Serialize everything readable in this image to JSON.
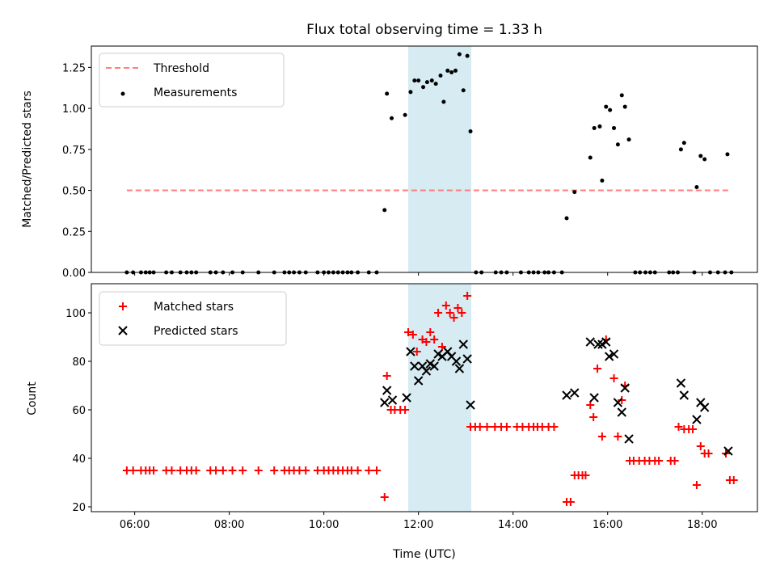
{
  "figure": {
    "title": "Flux total observing time = 1.33 h"
  },
  "chart_data": [
    {
      "type": "scatter",
      "panel": "top",
      "title": "Flux total observing time = 1.33 h",
      "xlabel": "",
      "ylabel": "Matched/Predicted stars",
      "xlim": [
        "05:05",
        "19:10"
      ],
      "ylim": [
        0,
        1.38
      ],
      "yticks": [
        "0.00",
        "0.25",
        "0.50",
        "0.75",
        "1.00",
        "1.25"
      ],
      "legend": {
        "placement": "top-left",
        "entries": [
          "Threshold",
          "Measurements"
        ]
      },
      "highlight_span": {
        "from": "11:47",
        "to": "13:07",
        "color": "#add8e6"
      },
      "series": [
        {
          "name": "Threshold",
          "style": "dashed-line",
          "color": "#ff7f7f",
          "points": [
            [
              "05:50",
              0.5
            ],
            [
              "18:35",
              0.5
            ]
          ]
        },
        {
          "name": "Measurements",
          "style": "dot",
          "color": "#000000",
          "points": [
            [
              "05:50",
              0
            ],
            [
              "05:58",
              0
            ],
            [
              "06:08",
              0
            ],
            [
              "06:14",
              0
            ],
            [
              "06:19",
              0
            ],
            [
              "06:24",
              0
            ],
            [
              "06:40",
              0
            ],
            [
              "06:47",
              0
            ],
            [
              "06:58",
              0
            ],
            [
              "07:06",
              0
            ],
            [
              "07:12",
              0
            ],
            [
              "07:18",
              0
            ],
            [
              "07:36",
              0
            ],
            [
              "07:43",
              0
            ],
            [
              "07:52",
              0
            ],
            [
              "08:04",
              0
            ],
            [
              "08:17",
              0
            ],
            [
              "08:37",
              0
            ],
            [
              "08:57",
              0
            ],
            [
              "09:10",
              0
            ],
            [
              "09:16",
              0
            ],
            [
              "09:22",
              0
            ],
            [
              "09:29",
              0
            ],
            [
              "09:37",
              0
            ],
            [
              "09:52",
              0
            ],
            [
              "10:00",
              0
            ],
            [
              "10:06",
              0
            ],
            [
              "10:12",
              0
            ],
            [
              "10:18",
              0
            ],
            [
              "10:24",
              0
            ],
            [
              "10:30",
              0
            ],
            [
              "10:35",
              0
            ],
            [
              "10:43",
              0
            ],
            [
              "10:57",
              0
            ],
            [
              "11:07",
              0
            ],
            [
              "11:17",
              0.38
            ],
            [
              "11:20",
              1.09
            ],
            [
              "11:26",
              0.94
            ],
            [
              "11:43",
              0.96
            ],
            [
              "11:50",
              1.1
            ],
            [
              "11:55",
              1.17
            ],
            [
              "12:00",
              1.17
            ],
            [
              "12:06",
              1.13
            ],
            [
              "12:11",
              1.16
            ],
            [
              "12:17",
              1.17
            ],
            [
              "12:22",
              1.15
            ],
            [
              "12:28",
              1.2
            ],
            [
              "12:32",
              1.04
            ],
            [
              "12:37",
              1.23
            ],
            [
              "12:42",
              1.22
            ],
            [
              "12:47",
              1.23
            ],
            [
              "12:52",
              1.33
            ],
            [
              "12:57",
              1.11
            ],
            [
              "13:02",
              1.32
            ],
            [
              "13:06",
              0.86
            ],
            [
              "13:13",
              0
            ],
            [
              "13:20",
              0
            ],
            [
              "13:38",
              0
            ],
            [
              "13:45",
              0
            ],
            [
              "13:52",
              0
            ],
            [
              "14:10",
              0
            ],
            [
              "14:20",
              0
            ],
            [
              "14:26",
              0
            ],
            [
              "14:32",
              0
            ],
            [
              "14:40",
              0
            ],
            [
              "14:45",
              0
            ],
            [
              "14:52",
              0
            ],
            [
              "15:02",
              0
            ],
            [
              "15:08",
              0.33
            ],
            [
              "15:18",
              0.49
            ],
            [
              "15:38",
              0.7
            ],
            [
              "15:43",
              0.88
            ],
            [
              "15:50",
              0.89
            ],
            [
              "15:53",
              0.56
            ],
            [
              "15:58",
              1.01
            ],
            [
              "16:03",
              0.99
            ],
            [
              "16:08",
              0.88
            ],
            [
              "16:13",
              0.78
            ],
            [
              "16:18",
              1.08
            ],
            [
              "16:22",
              1.01
            ],
            [
              "16:27",
              0.81
            ],
            [
              "16:35",
              0
            ],
            [
              "16:41",
              0
            ],
            [
              "16:48",
              0
            ],
            [
              "16:54",
              0
            ],
            [
              "17:00",
              0
            ],
            [
              "17:18",
              0
            ],
            [
              "17:23",
              0
            ],
            [
              "17:29",
              0
            ],
            [
              "17:33",
              0.75
            ],
            [
              "17:37",
              0.79
            ],
            [
              "17:50",
              0
            ],
            [
              "17:53",
              0.52
            ],
            [
              "17:58",
              0.71
            ],
            [
              "18:03",
              0.69
            ],
            [
              "18:10",
              0
            ],
            [
              "18:20",
              0
            ],
            [
              "18:29",
              0
            ],
            [
              "18:32",
              0.72
            ],
            [
              "18:37",
              0
            ]
          ]
        }
      ]
    },
    {
      "type": "scatter",
      "panel": "bottom",
      "xlabel": "Time (UTC)",
      "ylabel": "Count",
      "xlim": [
        "05:05",
        "19:10"
      ],
      "ylim": [
        18,
        112
      ],
      "xticks": [
        "06:00",
        "08:00",
        "10:00",
        "12:00",
        "14:00",
        "16:00",
        "18:00"
      ],
      "yticks": [
        "20",
        "40",
        "60",
        "80",
        "100"
      ],
      "legend": {
        "placement": "top-left",
        "entries": [
          "Matched stars",
          "Predicted stars"
        ]
      },
      "highlight_span": {
        "from": "11:47",
        "to": "13:07",
        "color": "#add8e6"
      },
      "series": [
        {
          "name": "Matched stars",
          "style": "plus",
          "color": "#ff0000",
          "points": [
            [
              "05:50",
              35
            ],
            [
              "05:58",
              35
            ],
            [
              "06:08",
              35
            ],
            [
              "06:14",
              35
            ],
            [
              "06:19",
              35
            ],
            [
              "06:24",
              35
            ],
            [
              "06:40",
              35
            ],
            [
              "06:47",
              35
            ],
            [
              "06:58",
              35
            ],
            [
              "07:06",
              35
            ],
            [
              "07:12",
              35
            ],
            [
              "07:18",
              35
            ],
            [
              "07:36",
              35
            ],
            [
              "07:43",
              35
            ],
            [
              "07:52",
              35
            ],
            [
              "08:04",
              35
            ],
            [
              "08:17",
              35
            ],
            [
              "08:37",
              35
            ],
            [
              "08:57",
              35
            ],
            [
              "09:10",
              35
            ],
            [
              "09:16",
              35
            ],
            [
              "09:22",
              35
            ],
            [
              "09:29",
              35
            ],
            [
              "09:37",
              35
            ],
            [
              "09:52",
              35
            ],
            [
              "10:00",
              35
            ],
            [
              "10:06",
              35
            ],
            [
              "10:12",
              35
            ],
            [
              "10:18",
              35
            ],
            [
              "10:24",
              35
            ],
            [
              "10:30",
              35
            ],
            [
              "10:35",
              35
            ],
            [
              "10:43",
              35
            ],
            [
              "10:57",
              35
            ],
            [
              "11:07",
              35
            ],
            [
              "11:17",
              24
            ],
            [
              "11:20",
              74
            ],
            [
              "11:25",
              60
            ],
            [
              "11:30",
              60
            ],
            [
              "11:37",
              60
            ],
            [
              "11:43",
              60
            ],
            [
              "11:47",
              92
            ],
            [
              "11:53",
              91
            ],
            [
              "11:58",
              84
            ],
            [
              "12:05",
              89
            ],
            [
              "12:10",
              88
            ],
            [
              "12:15",
              92
            ],
            [
              "12:20",
              89
            ],
            [
              "12:25",
              100
            ],
            [
              "12:30",
              86
            ],
            [
              "12:35",
              103
            ],
            [
              "12:40",
              100
            ],
            [
              "12:45",
              98
            ],
            [
              "12:50",
              102
            ],
            [
              "12:55",
              100
            ],
            [
              "13:02",
              107
            ],
            [
              "13:06",
              53
            ],
            [
              "13:12",
              53
            ],
            [
              "13:18",
              53
            ],
            [
              "13:27",
              53
            ],
            [
              "13:37",
              53
            ],
            [
              "13:45",
              53
            ],
            [
              "13:52",
              53
            ],
            [
              "14:05",
              53
            ],
            [
              "14:12",
              53
            ],
            [
              "14:20",
              53
            ],
            [
              "14:26",
              53
            ],
            [
              "14:31",
              53
            ],
            [
              "14:37",
              53
            ],
            [
              "14:45",
              53
            ],
            [
              "14:52",
              53
            ],
            [
              "15:08",
              22
            ],
            [
              "15:13",
              22
            ],
            [
              "15:18",
              33
            ],
            [
              "15:23",
              33
            ],
            [
              "15:28",
              33
            ],
            [
              "15:32",
              33
            ],
            [
              "15:38",
              62
            ],
            [
              "15:42",
              57
            ],
            [
              "15:47",
              77
            ],
            [
              "15:53",
              49
            ],
            [
              "15:58",
              89
            ],
            [
              "16:08",
              73
            ],
            [
              "16:13",
              49
            ],
            [
              "16:18",
              64
            ],
            [
              "16:22",
              70
            ],
            [
              "16:28",
              39
            ],
            [
              "16:33",
              39
            ],
            [
              "16:40",
              39
            ],
            [
              "16:47",
              39
            ],
            [
              "16:53",
              39
            ],
            [
              "17:00",
              39
            ],
            [
              "17:05",
              39
            ],
            [
              "17:20",
              39
            ],
            [
              "17:25",
              39
            ],
            [
              "17:30",
              53
            ],
            [
              "17:37",
              52
            ],
            [
              "17:43",
              52
            ],
            [
              "17:48",
              52
            ],
            [
              "17:53",
              29
            ],
            [
              "17:58",
              45
            ],
            [
              "18:03",
              42
            ],
            [
              "18:08",
              42
            ],
            [
              "18:30",
              42
            ],
            [
              "18:35",
              31
            ],
            [
              "18:40",
              31
            ]
          ]
        },
        {
          "name": "Predicted stars",
          "style": "x",
          "color": "#000000",
          "points": [
            [
              "11:17",
              63
            ],
            [
              "11:20",
              68
            ],
            [
              "11:27",
              64
            ],
            [
              "11:45",
              65
            ],
            [
              "11:50",
              84
            ],
            [
              "11:55",
              78
            ],
            [
              "12:00",
              72
            ],
            [
              "12:05",
              78
            ],
            [
              "12:10",
              76
            ],
            [
              "12:15",
              79
            ],
            [
              "12:20",
              78
            ],
            [
              "12:25",
              83
            ],
            [
              "12:30",
              82
            ],
            [
              "12:37",
              84
            ],
            [
              "12:42",
              82
            ],
            [
              "12:48",
              80
            ],
            [
              "12:52",
              77
            ],
            [
              "12:57",
              87
            ],
            [
              "13:02",
              81
            ],
            [
              "13:06",
              62
            ],
            [
              "15:08",
              66
            ],
            [
              "15:18",
              67
            ],
            [
              "15:38",
              88
            ],
            [
              "15:43",
              65
            ],
            [
              "15:48",
              87
            ],
            [
              "15:53",
              87
            ],
            [
              "15:58",
              88
            ],
            [
              "16:02",
              82
            ],
            [
              "16:08",
              83
            ],
            [
              "16:13",
              63
            ],
            [
              "16:18",
              59
            ],
            [
              "16:22",
              69
            ],
            [
              "16:27",
              48
            ],
            [
              "17:33",
              71
            ],
            [
              "17:37",
              66
            ],
            [
              "17:53",
              56
            ],
            [
              "17:58",
              63
            ],
            [
              "18:03",
              61
            ],
            [
              "18:33",
              43
            ]
          ]
        }
      ]
    }
  ]
}
